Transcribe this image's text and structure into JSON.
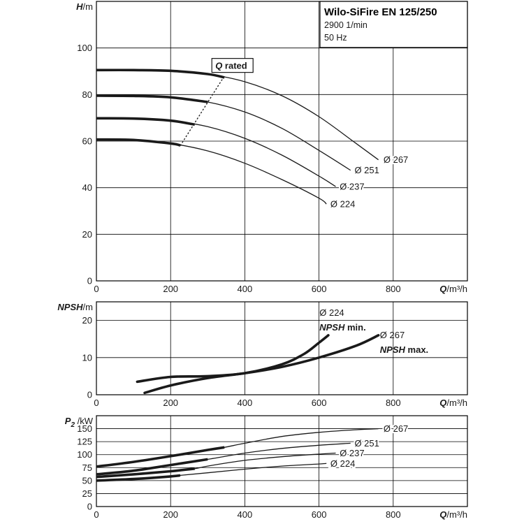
{
  "chart_data": [
    {
      "type": "line",
      "id": "head",
      "title": "Wilo-SiFire EN 125/250",
      "subtitle_lines": [
        "2900 1/min",
        "50 Hz"
      ],
      "ylabel_var": "H",
      "ylabel_unit": "/m",
      "xlabel_var": "Q",
      "xlabel_unit": "/m³/h",
      "xlim": [
        0,
        1000
      ],
      "ylim": [
        0,
        120
      ],
      "xticks": [
        0,
        200,
        400,
        600,
        800
      ],
      "yticks": [
        0,
        20,
        40,
        60,
        80,
        100
      ],
      "grid": true,
      "annotation": {
        "text": "Q rated",
        "var": "Q",
        "rest": " rated",
        "points": [
          [
            226,
            58
          ],
          [
            345,
            88
          ]
        ]
      },
      "series": [
        {
          "name": "Ø 267",
          "label_at": [
            770,
            52
          ],
          "bold_to": 345,
          "points": [
            [
              0,
              90.5
            ],
            [
              100,
              90.5
            ],
            [
              200,
              90.2
            ],
            [
              300,
              88.8
            ],
            [
              400,
              85.5
            ],
            [
              500,
              79.5
            ],
            [
              600,
              70.5
            ],
            [
              700,
              59
            ],
            [
              760,
              52
            ]
          ]
        },
        {
          "name": "Ø 251",
          "label_at": [
            692,
            47.5
          ],
          "bold_to": 300,
          "points": [
            [
              0,
              79.5
            ],
            [
              100,
              79.4
            ],
            [
              200,
              78.8
            ],
            [
              300,
              76.8
            ],
            [
              400,
              72.5
            ],
            [
              500,
              65.5
            ],
            [
              600,
              56
            ],
            [
              685,
              47.5
            ]
          ]
        },
        {
          "name": "Ø 237",
          "label_at": [
            652,
            40.5
          ],
          "bold_to": 265,
          "points": [
            [
              0,
              69.8
            ],
            [
              100,
              69.7
            ],
            [
              200,
              68.8
            ],
            [
              300,
              66.2
            ],
            [
              400,
              61.2
            ],
            [
              500,
              54
            ],
            [
              600,
              45
            ],
            [
              645,
              40.5
            ]
          ]
        },
        {
          "name": "Ø 224",
          "label_at": [
            627,
            33
          ],
          "bold_to": 226,
          "points": [
            [
              0,
              60.7
            ],
            [
              100,
              60.5
            ],
            [
              200,
              59
            ],
            [
              300,
              55.8
            ],
            [
              400,
              50.5
            ],
            [
              500,
              43.5
            ],
            [
              600,
              35.5
            ],
            [
              620,
              33
            ]
          ]
        }
      ]
    },
    {
      "type": "line",
      "id": "npsh",
      "ylabel_var": "NPSH",
      "ylabel_unit": "/m",
      "xlabel_var": "Q",
      "xlabel_unit": "/m³/h",
      "xlim": [
        0,
        1000
      ],
      "ylim": [
        0,
        25
      ],
      "xticks": [
        0,
        200,
        400,
        600,
        800
      ],
      "yticks": [
        0,
        10,
        20
      ],
      "grid": true,
      "series": [
        {
          "name": "Ø 224",
          "legend_var": "NPSH",
          "legend_rest": " min.",
          "label_at": [
            605,
            22
          ],
          "legend_at": [
            605,
            18
          ],
          "points": [
            [
              110,
              3.5
            ],
            [
              200,
              4.8
            ],
            [
              300,
              5
            ],
            [
              400,
              5.8
            ],
            [
              500,
              8.2
            ],
            [
              560,
              11
            ],
            [
              600,
              14
            ],
            [
              625,
              16
            ]
          ]
        },
        {
          "name": "Ø 267",
          "legend_var": "NPSH",
          "legend_rest": " max.",
          "label_at": [
            768,
            16
          ],
          "legend_at": [
            768,
            12
          ],
          "points": [
            [
              130,
              0.5
            ],
            [
              200,
              2.5
            ],
            [
              300,
              4.5
            ],
            [
              400,
              5.8
            ],
            [
              500,
              7.5
            ],
            [
              600,
              10
            ],
            [
              700,
              13.2
            ],
            [
              760,
              16
            ]
          ]
        }
      ]
    },
    {
      "type": "line",
      "id": "power",
      "ylabel_var": "P",
      "ylabel_sub": "2",
      "ylabel_unit": " /kW",
      "xlabel_var": "Q",
      "xlabel_unit": "/m³/h",
      "xlim": [
        0,
        1000
      ],
      "ylim": [
        0,
        175
      ],
      "xticks": [
        0,
        200,
        400,
        600,
        800
      ],
      "yticks": [
        0,
        25,
        50,
        75,
        100,
        125,
        150
      ],
      "grid": true,
      "series": [
        {
          "name": "Ø 267",
          "label_at": [
            770,
            150
          ],
          "bold_to": 345,
          "points": [
            [
              0,
              77
            ],
            [
              100,
              86
            ],
            [
              200,
              97
            ],
            [
              300,
              109
            ],
            [
              345,
              114
            ],
            [
              400,
              122
            ],
            [
              500,
              135
            ],
            [
              600,
              143
            ],
            [
              700,
              148
            ],
            [
              760,
              150
            ]
          ]
        },
        {
          "name": "Ø 251",
          "label_at": [
            692,
            122
          ],
          "bold_to": 300,
          "points": [
            [
              0,
              62
            ],
            [
              100,
              69
            ],
            [
              200,
              80
            ],
            [
              300,
              91
            ],
            [
              400,
              103
            ],
            [
              500,
              112
            ],
            [
              600,
              118
            ],
            [
              685,
              122
            ]
          ]
        },
        {
          "name": "Ø 237",
          "label_at": [
            652,
            103
          ],
          "bold_to": 265,
          "points": [
            [
              0,
              57
            ],
            [
              100,
              62
            ],
            [
              200,
              68
            ],
            [
              265,
              73
            ],
            [
              300,
              78
            ],
            [
              400,
              89
            ],
            [
              500,
              96
            ],
            [
              600,
              101
            ],
            [
              645,
              103
            ]
          ]
        },
        {
          "name": "Ø 224",
          "label_at": [
            627,
            83
          ],
          "bold_to": 226,
          "points": [
            [
              0,
              50
            ],
            [
              100,
              53
            ],
            [
              200,
              58
            ],
            [
              226,
              60
            ],
            [
              300,
              65
            ],
            [
              400,
              72
            ],
            [
              500,
              78
            ],
            [
              600,
              82
            ],
            [
              620,
              83
            ]
          ]
        }
      ]
    }
  ]
}
